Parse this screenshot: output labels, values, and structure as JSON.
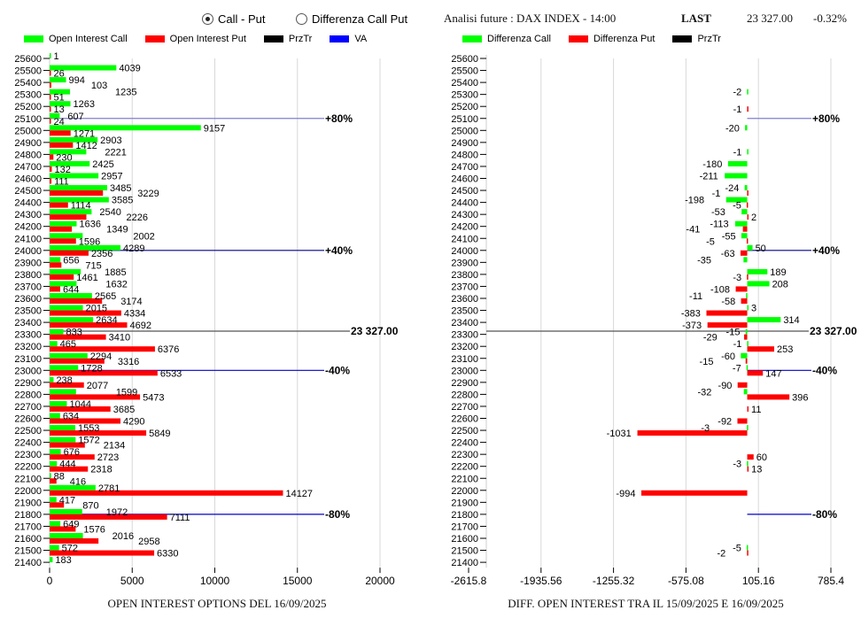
{
  "header": {
    "radio_options": [
      {
        "label": "Call - Put",
        "selected": true
      },
      {
        "label": "Differenza Call Put",
        "selected": false
      }
    ],
    "analysis_title": "Analisi future : DAX INDEX - 14:00",
    "last_label": "LAST",
    "last_value": "23 327.00",
    "change": "-0.32%"
  },
  "legend_left": [
    {
      "label": "Open Interest Call",
      "color": "#00ff00"
    },
    {
      "label": "Open Interest Put",
      "color": "#ff0000"
    },
    {
      "label": "PrzTr",
      "color": "#000000"
    },
    {
      "label": "VA",
      "color": "#0000ff"
    }
  ],
  "legend_right": [
    {
      "label": "Differenza Call",
      "color": "#00ff00"
    },
    {
      "label": "Differenza Put",
      "color": "#ff0000"
    },
    {
      "label": "PrzTr",
      "color": "#000000"
    }
  ],
  "chart_data": [
    {
      "type": "bar",
      "title": "OPEN INTEREST OPTIONS DEL 16/09/2025",
      "orientation": "horizontal",
      "categories": [
        25600,
        25500,
        25400,
        25300,
        25200,
        25100,
        25000,
        24900,
        24800,
        24700,
        24600,
        24500,
        24400,
        24300,
        24200,
        24100,
        24000,
        23900,
        23800,
        23700,
        23600,
        23500,
        23400,
        23300,
        23200,
        23100,
        23000,
        22900,
        22800,
        22700,
        22600,
        22500,
        22400,
        22300,
        22200,
        22100,
        22000,
        21900,
        21800,
        21700,
        21600,
        21500,
        21400
      ],
      "series": [
        {
          "name": "Open Interest Call",
          "color": "#00ff00",
          "values": [
            1,
            4039,
            994,
            1235,
            1263,
            607,
            9157,
            2903,
            2221,
            2425,
            2957,
            3485,
            3585,
            2540,
            1636,
            2002,
            4289,
            656,
            1885,
            1632,
            2565,
            2015,
            2634,
            833,
            465,
            2294,
            1728,
            238,
            1599,
            1044,
            634,
            1553,
            1572,
            676,
            444,
            88,
            2781,
            417,
            1972,
            649,
            2016,
            572,
            183
          ]
        },
        {
          "name": "Open Interest Put",
          "color": "#ff0000",
          "values": [
            null,
            26,
            103,
            51,
            13,
            24,
            1271,
            1412,
            230,
            132,
            111,
            3229,
            1114,
            2226,
            1349,
            1596,
            2356,
            715,
            1461,
            644,
            3174,
            4334,
            4692,
            3410,
            6376,
            3316,
            6533,
            2077,
            5473,
            3685,
            4290,
            5849,
            2134,
            2723,
            2318,
            416,
            14127,
            870,
            7111,
            1576,
            2958,
            6330,
            null
          ]
        }
      ],
      "xlim": [
        0,
        20000
      ],
      "xticks": [
        "0",
        "5000",
        "10000",
        "15000",
        "20000"
      ],
      "reference_lines": [
        {
          "strike": 25100,
          "label": "+80%",
          "color": "#7f7fd0"
        },
        {
          "strike": 24000,
          "label": "+40%",
          "color": "#00008b"
        },
        {
          "strike": 23327,
          "label": "23 327.00",
          "color": "#555555"
        },
        {
          "strike": 23000,
          "label": "-40%",
          "color": "#0000cd"
        },
        {
          "strike": 21800,
          "label": "-80%",
          "color": "#0000cd"
        }
      ]
    },
    {
      "type": "bar",
      "title": "DIFF. OPEN INTEREST TRA IL 15/09/2025 E 16/09/2025",
      "orientation": "horizontal",
      "categories": [
        25600,
        25500,
        25400,
        25300,
        25200,
        25100,
        25000,
        24900,
        24800,
        24700,
        24600,
        24500,
        24400,
        24300,
        24200,
        24100,
        24000,
        23900,
        23800,
        23700,
        23600,
        23500,
        23400,
        23300,
        23200,
        23100,
        23000,
        22900,
        22800,
        22700,
        22600,
        22500,
        22400,
        22300,
        22200,
        22100,
        22000,
        21900,
        21800,
        21700,
        21600,
        21500,
        21400
      ],
      "series": [
        {
          "name": "Differenza Call",
          "color": "#00ff00",
          "values": [
            null,
            null,
            null,
            -2,
            null,
            null,
            -20,
            null,
            -1,
            -180,
            -211,
            -24,
            -198,
            -53,
            -113,
            -55,
            50,
            -35,
            189,
            208,
            -11,
            3,
            314,
            -15,
            -1,
            -60,
            -7,
            null,
            -32,
            null,
            null,
            -3,
            null,
            null,
            -3,
            null,
            null,
            null,
            null,
            null,
            null,
            -5,
            null
          ]
        },
        {
          "name": "Differenza Put",
          "color": "#ff0000",
          "values": [
            null,
            null,
            null,
            null,
            -1,
            null,
            null,
            null,
            null,
            null,
            null,
            -1,
            -5,
            2,
            -41,
            -5,
            -63,
            null,
            -3,
            -108,
            -58,
            -383,
            -373,
            -29,
            253,
            -15,
            147,
            -90,
            396,
            11,
            -92,
            -1031,
            null,
            60,
            13,
            null,
            -994,
            null,
            null,
            null,
            null,
            -2,
            null
          ]
        }
      ],
      "xlim": [
        -2615.8,
        785.4
      ],
      "xticks": [
        "-2615.8",
        "-1935.56",
        "-1255.32",
        "-575.08",
        "105.16",
        "785.4"
      ],
      "reference_lines": [
        {
          "strike": 25100,
          "label": "+80%",
          "color": "#7f7fd0"
        },
        {
          "strike": 24000,
          "label": "+40%",
          "color": "#00008b"
        },
        {
          "strike": 23327,
          "label": "23 327.00",
          "color": "#555555"
        },
        {
          "strike": 23000,
          "label": "-40%",
          "color": "#0000cd"
        },
        {
          "strike": 21800,
          "label": "-80%",
          "color": "#0000cd"
        }
      ]
    }
  ]
}
